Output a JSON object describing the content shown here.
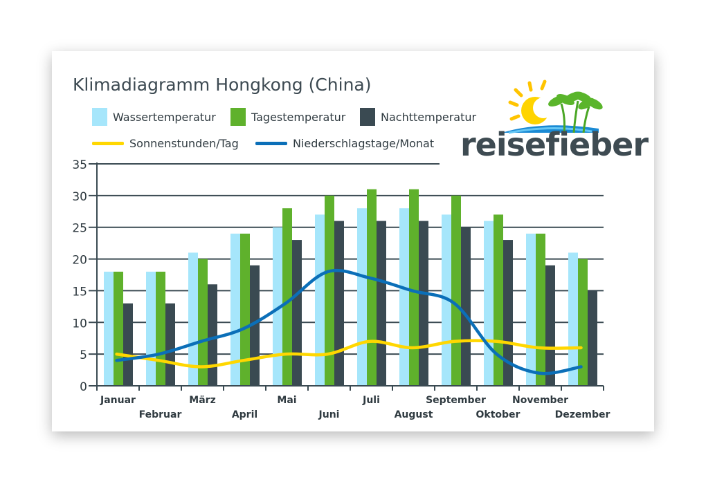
{
  "brand": {
    "name": "reisefieber"
  },
  "legend": [
    {
      "label": "Wassertemperatur",
      "kind": "bar",
      "color": "#a6e6fb"
    },
    {
      "label": "Tagestemperatur",
      "kind": "bar",
      "color": "#5fb12c"
    },
    {
      "label": "Nachttemperatur",
      "kind": "bar",
      "color": "#3a4a52"
    },
    {
      "label": "Sonnenstunden/Tag",
      "kind": "line",
      "color": "#ffd700"
    },
    {
      "label": "Niederschlagstage/Monat",
      "kind": "line",
      "color": "#0b6fb8"
    }
  ],
  "chart_data": {
    "type": "bar",
    "title": "Klimadiagramm Hongkong (China)",
    "categories": [
      "Januar",
      "Februar",
      "März",
      "April",
      "Mai",
      "Juni",
      "Juli",
      "August",
      "September",
      "Oktober",
      "November",
      "Dezember"
    ],
    "series": [
      {
        "name": "Wassertemperatur",
        "type": "bar",
        "color": "#a6e6fb",
        "values": [
          18,
          18,
          21,
          24,
          25,
          27,
          28,
          28,
          27,
          26,
          24,
          21
        ]
      },
      {
        "name": "Tagestemperatur",
        "type": "bar",
        "color": "#5fb12c",
        "values": [
          18,
          18,
          20,
          24,
          28,
          30,
          31,
          31,
          30,
          27,
          24,
          20
        ]
      },
      {
        "name": "Nachttemperatur",
        "type": "bar",
        "color": "#3a4a52",
        "values": [
          13,
          13,
          16,
          19,
          23,
          26,
          26,
          26,
          25,
          23,
          19,
          15
        ]
      },
      {
        "name": "Sonnenstunden/Tag",
        "type": "line",
        "color": "#ffd700",
        "values": [
          5,
          4,
          3,
          4,
          5,
          5,
          7,
          6,
          7,
          7,
          6,
          6
        ]
      },
      {
        "name": "Niederschlagstage/Monat",
        "type": "line",
        "color": "#0b6fb8",
        "values": [
          4,
          5,
          7,
          9,
          13,
          18,
          17,
          15,
          13,
          5,
          2,
          3
        ]
      }
    ],
    "ylim": [
      0,
      35
    ],
    "yticks": [
      0,
      5,
      10,
      15,
      20,
      25,
      30,
      35
    ],
    "grid": true,
    "legend_position": "top-left"
  }
}
